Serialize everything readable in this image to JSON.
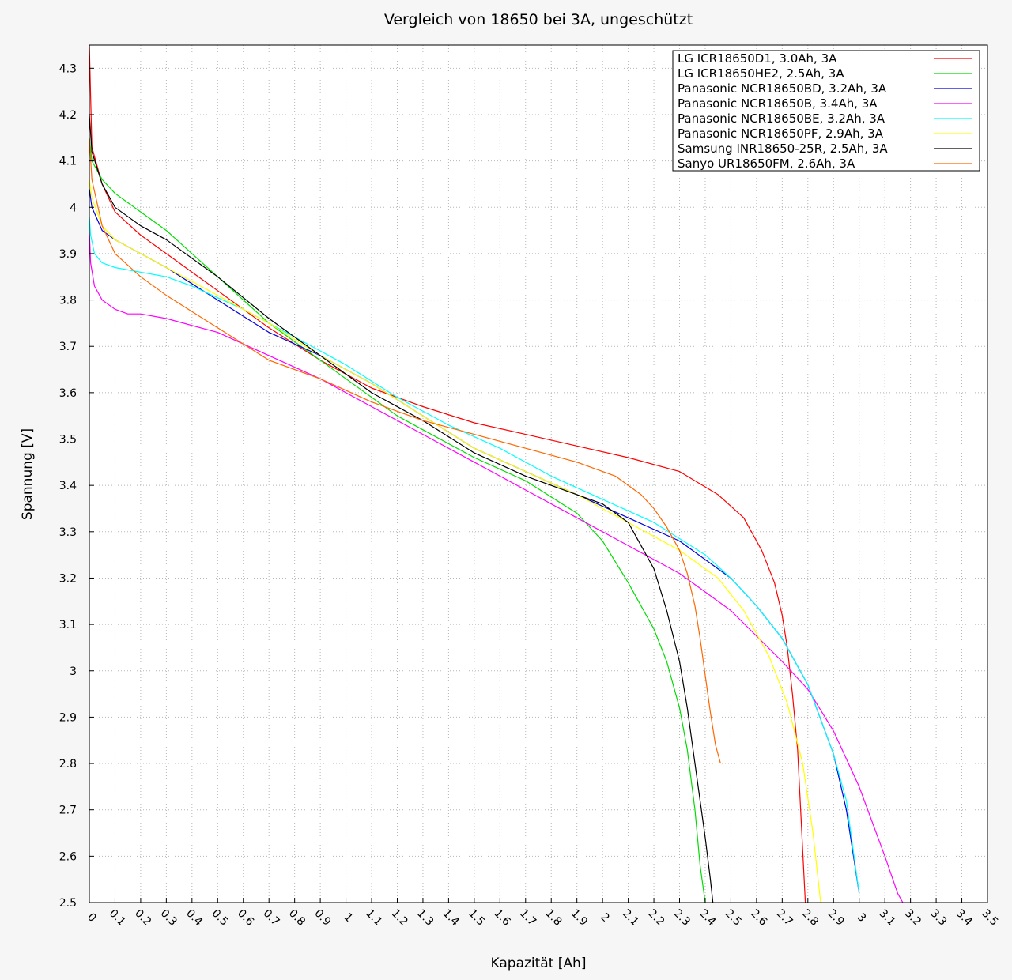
{
  "chart_data": {
    "type": "line",
    "title": "Vergleich von 18650 bei 3A, ungeschützt",
    "xlabel": "Kapazität [Ah]",
    "ylabel": "Spannung [V]",
    "xlim": [
      0,
      3.5
    ],
    "ylim": [
      2.5,
      4.35
    ],
    "x_ticks": [
      "0",
      "0.1",
      "0.2",
      "0.3",
      "0.4",
      "0.5",
      "0.6",
      "0.7",
      "0.8",
      "0.9",
      "1",
      "1.1",
      "1.2",
      "1.3",
      "1.4",
      "1.5",
      "1.6",
      "1.7",
      "1.8",
      "1.9",
      "2",
      "2.1",
      "2.2",
      "2.3",
      "2.4",
      "2.5",
      "2.6",
      "2.7",
      "2.8",
      "2.9",
      "3",
      "3.1",
      "3.2",
      "3.3",
      "3.4",
      "3.5"
    ],
    "y_ticks": [
      "2.5",
      "2.6",
      "2.7",
      "2.8",
      "2.9",
      "3",
      "3.1",
      "3.2",
      "3.3",
      "3.4",
      "3.5",
      "3.6",
      "3.7",
      "3.8",
      "3.9",
      "4",
      "4.1",
      "4.2",
      "4.3"
    ],
    "grid": true,
    "legend_position": "top-right",
    "series": [
      {
        "name": "LG ICR18650D1, 3.0Ah, 3A",
        "color": "#ff0000",
        "x": [
          0,
          0.01,
          0.05,
          0.1,
          0.2,
          0.3,
          0.5,
          0.7,
          0.9,
          1.1,
          1.3,
          1.5,
          1.7,
          1.9,
          2.1,
          2.3,
          2.45,
          2.55,
          2.62,
          2.67,
          2.7,
          2.72,
          2.74,
          2.76,
          2.79
        ],
        "y": [
          4.35,
          4.13,
          4.05,
          3.99,
          3.94,
          3.9,
          3.82,
          3.74,
          3.67,
          3.61,
          3.57,
          3.535,
          3.51,
          3.485,
          3.46,
          3.43,
          3.38,
          3.33,
          3.26,
          3.19,
          3.12,
          3.05,
          2.95,
          2.83,
          2.5
        ]
      },
      {
        "name": "LG ICR18650HE2, 2.5Ah, 3A",
        "color": "#00dd00",
        "x": [
          0,
          0.01,
          0.05,
          0.1,
          0.2,
          0.3,
          0.4,
          0.5,
          0.7,
          0.9,
          1.0,
          1.1,
          1.2,
          1.3,
          1.5,
          1.7,
          1.9,
          2.0,
          2.1,
          2.2,
          2.25,
          2.3,
          2.33,
          2.36,
          2.38,
          2.4
        ],
        "y": [
          4.15,
          4.1,
          4.06,
          4.03,
          3.99,
          3.95,
          3.9,
          3.85,
          3.75,
          3.67,
          3.63,
          3.59,
          3.55,
          3.52,
          3.46,
          3.41,
          3.34,
          3.28,
          3.19,
          3.09,
          3.02,
          2.92,
          2.83,
          2.7,
          2.58,
          2.5
        ]
      },
      {
        "name": "Panasonic NCR18650BD, 3.2Ah, 3A",
        "color": "#0000dd",
        "x": [
          0,
          0.01,
          0.05,
          0.1,
          0.2,
          0.3,
          0.5,
          0.7,
          0.9,
          1.1,
          1.3,
          1.5,
          1.7,
          1.9,
          2.1,
          2.3,
          2.5,
          2.6,
          2.7,
          2.8,
          2.9,
          2.95,
          3.0
        ],
        "y": [
          4.04,
          4.0,
          3.95,
          3.93,
          3.9,
          3.87,
          3.8,
          3.73,
          3.68,
          3.62,
          3.55,
          3.48,
          3.43,
          3.38,
          3.33,
          3.28,
          3.2,
          3.14,
          3.07,
          2.97,
          2.82,
          2.7,
          2.52
        ]
      },
      {
        "name": "Panasonic NCR18650B, 3.4Ah, 3A",
        "color": "#ff00ff",
        "x": [
          0,
          0.005,
          0.02,
          0.05,
          0.1,
          0.15,
          0.2,
          0.3,
          0.5,
          0.7,
          0.9,
          1.1,
          1.3,
          1.5,
          1.7,
          1.9,
          2.1,
          2.3,
          2.5,
          2.7,
          2.8,
          2.9,
          3.0,
          3.1,
          3.15,
          3.17
        ],
        "y": [
          3.95,
          3.88,
          3.83,
          3.8,
          3.78,
          3.77,
          3.77,
          3.76,
          3.73,
          3.68,
          3.63,
          3.57,
          3.51,
          3.45,
          3.39,
          3.33,
          3.27,
          3.21,
          3.13,
          3.02,
          2.96,
          2.87,
          2.75,
          2.6,
          2.52,
          2.5
        ]
      },
      {
        "name": "Panasonic NCR18650BE, 3.2Ah, 3A",
        "color": "#00ffff",
        "x": [
          0,
          0.005,
          0.02,
          0.05,
          0.1,
          0.2,
          0.3,
          0.4,
          0.6,
          0.8,
          1.0,
          1.2,
          1.4,
          1.6,
          1.8,
          2.0,
          2.2,
          2.4,
          2.5,
          2.6,
          2.7,
          2.8,
          2.9,
          2.95,
          3.0
        ],
        "y": [
          3.98,
          3.94,
          3.9,
          3.88,
          3.87,
          3.86,
          3.85,
          3.83,
          3.78,
          3.72,
          3.66,
          3.59,
          3.53,
          3.48,
          3.42,
          3.37,
          3.32,
          3.25,
          3.2,
          3.14,
          3.07,
          2.97,
          2.82,
          2.72,
          2.52
        ]
      },
      {
        "name": "Panasonic NCR18650PF, 2.9Ah, 3A",
        "color": "#ffff00",
        "x": [
          0,
          0.01,
          0.05,
          0.1,
          0.2,
          0.3,
          0.5,
          0.7,
          0.9,
          1.1,
          1.3,
          1.5,
          1.7,
          1.9,
          2.1,
          2.3,
          2.45,
          2.55,
          2.65,
          2.72,
          2.78,
          2.82,
          2.85
        ],
        "y": [
          4.06,
          4.02,
          3.96,
          3.93,
          3.9,
          3.87,
          3.81,
          3.75,
          3.68,
          3.62,
          3.55,
          3.48,
          3.43,
          3.38,
          3.32,
          3.26,
          3.2,
          3.13,
          3.03,
          2.93,
          2.8,
          2.65,
          2.5
        ]
      },
      {
        "name": "Samsung INR18650-25R, 2.5Ah, 3A",
        "color": "#000000",
        "x": [
          0,
          0.01,
          0.05,
          0.1,
          0.2,
          0.3,
          0.4,
          0.5,
          0.7,
          0.9,
          1.1,
          1.3,
          1.5,
          1.7,
          1.9,
          2.0,
          2.1,
          2.2,
          2.25,
          2.3,
          2.33,
          2.36,
          2.38,
          2.4,
          2.42,
          2.43
        ],
        "y": [
          4.2,
          4.12,
          4.05,
          4.0,
          3.96,
          3.93,
          3.89,
          3.85,
          3.76,
          3.68,
          3.6,
          3.54,
          3.47,
          3.42,
          3.38,
          3.36,
          3.32,
          3.22,
          3.13,
          3.02,
          2.92,
          2.8,
          2.72,
          2.64,
          2.55,
          2.5
        ]
      },
      {
        "name": "Sanyo UR18650FM, 2.6Ah, 3A",
        "color": "#ff6600",
        "x": [
          0,
          0.01,
          0.05,
          0.1,
          0.2,
          0.3,
          0.5,
          0.7,
          0.9,
          1.1,
          1.3,
          1.5,
          1.7,
          1.9,
          2.05,
          2.15,
          2.2,
          2.25,
          2.3,
          2.33,
          2.36,
          2.38,
          2.4,
          2.42,
          2.44,
          2.46
        ],
        "y": [
          4.15,
          4.06,
          3.96,
          3.9,
          3.85,
          3.81,
          3.74,
          3.67,
          3.63,
          3.58,
          3.54,
          3.51,
          3.48,
          3.45,
          3.42,
          3.38,
          3.35,
          3.31,
          3.26,
          3.21,
          3.14,
          3.07,
          2.99,
          2.91,
          2.84,
          2.8
        ]
      }
    ]
  }
}
